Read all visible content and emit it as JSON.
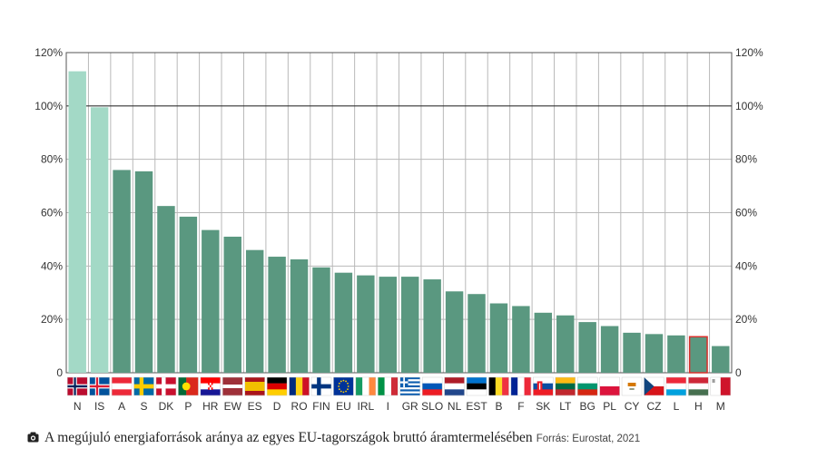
{
  "chart_data": {
    "type": "bar",
    "categories": [
      "N",
      "IS",
      "A",
      "S",
      "DK",
      "P",
      "HR",
      "EW",
      "ES",
      "D",
      "RO",
      "FIN",
      "EU",
      "IRL",
      "I",
      "GR",
      "SLO",
      "NL",
      "EST",
      "B",
      "F",
      "SK",
      "LT",
      "BG",
      "PL",
      "CY",
      "CZ",
      "L",
      "H",
      "M"
    ],
    "values": [
      113,
      99.5,
      76,
      75.5,
      62.5,
      58.5,
      53.5,
      51,
      46,
      43.5,
      42.5,
      39.5,
      37.5,
      36.5,
      36,
      36,
      35,
      30.5,
      29.5,
      26,
      25,
      22.5,
      21.5,
      19,
      17.5,
      15,
      14.5,
      14,
      13.5,
      10
    ],
    "non_eu_categories": [
      "N",
      "IS"
    ],
    "highlight_category": "H",
    "y_ticks": [
      "0",
      "20%",
      "40%",
      "60%",
      "80%",
      "100%",
      "120%"
    ],
    "ylim": [
      0,
      120
    ],
    "grid": true,
    "colors": {
      "bar": "#5a9880",
      "bar_non_eu": "#a3d9c6",
      "bar_highlight_border": "#d9302c",
      "grid": "#b9b9b9",
      "axis": "#444444"
    }
  },
  "caption": {
    "icon": "camera-icon",
    "text": "A megújuló energiaforrások aránya az egyes EU-tagországok bruttó áramtermelésében",
    "source": "Forrás: Eurostat, 2021"
  }
}
